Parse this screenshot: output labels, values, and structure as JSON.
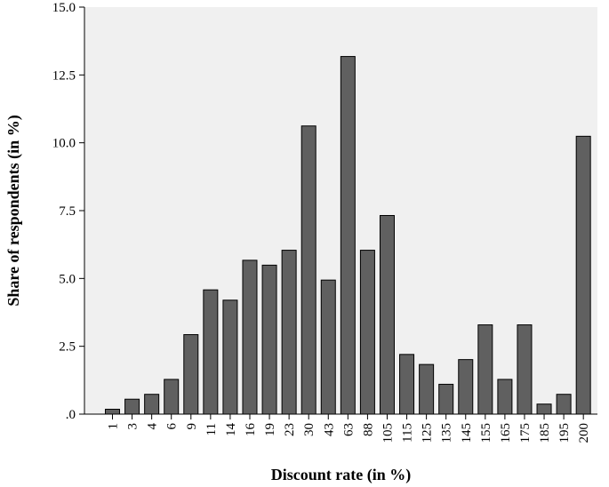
{
  "chart_data": {
    "type": "bar",
    "title": "",
    "xlabel": "Discount rate (in %)",
    "ylabel": "Share of respondents (in %)",
    "ylim": [
      0,
      15
    ],
    "yticks": [
      ".0",
      "2.5",
      "5.0",
      "7.5",
      "10.0",
      "12.5",
      "15.0"
    ],
    "categories": [
      "1",
      "3",
      "4",
      "6",
      "9",
      "11",
      "14",
      "16",
      "19",
      "23",
      "30",
      "43",
      "63",
      "88",
      "105",
      "115",
      "125",
      "135",
      "145",
      "155",
      "165",
      "175",
      "185",
      "195",
      "200"
    ],
    "values": [
      0.18,
      0.55,
      0.73,
      1.28,
      2.93,
      4.58,
      4.2,
      5.67,
      5.49,
      6.04,
      10.62,
      4.94,
      13.18,
      6.04,
      7.32,
      2.2,
      1.83,
      1.1,
      2.01,
      3.29,
      1.28,
      3.29,
      0.37,
      0.73,
      10.24
    ],
    "grid": false,
    "legend": "none",
    "colors": {
      "plot_background": "#f0f0f0",
      "bar_fill": "#606060",
      "bar_stroke": "#000000",
      "axis": "#000000"
    }
  }
}
